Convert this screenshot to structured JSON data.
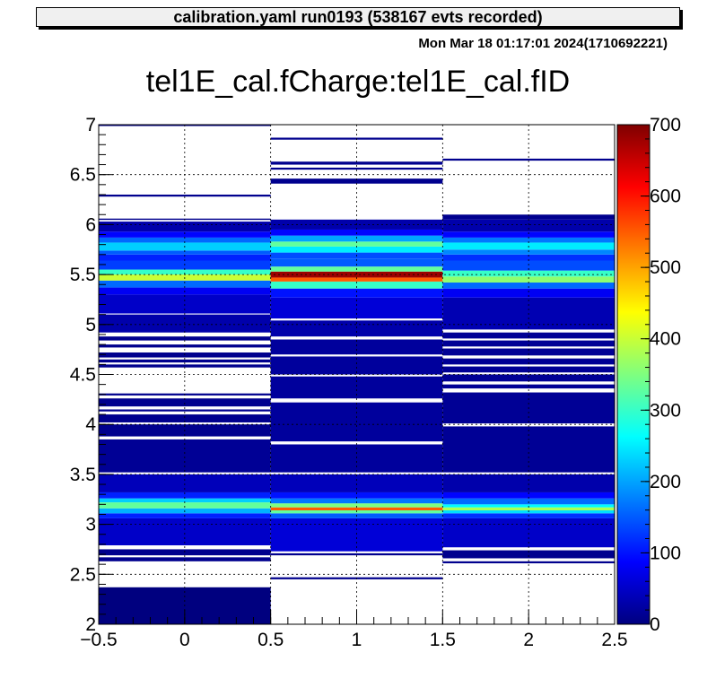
{
  "header": {
    "title": "calibration.yaml  run0193 (538167 evts recorded)"
  },
  "timestamp": "Mon Mar 18 01:17:01 2024(1710692221)",
  "chart_data": {
    "type": "heatmap",
    "title": "tel1E_cal.fCharge:tel1E_cal.fID",
    "xlabel": "",
    "ylabel": "",
    "xlim": [
      -0.5,
      2.5
    ],
    "ylim": [
      2,
      7
    ],
    "zlim": [
      0,
      700
    ],
    "x_ticks": [
      "−0.5",
      "0",
      "0.5",
      "1",
      "1.5",
      "2",
      "2.5"
    ],
    "x_tick_values": [
      -0.5,
      0,
      0.5,
      1,
      1.5,
      2,
      2.5
    ],
    "y_ticks": [
      "2",
      "2.5",
      "3",
      "3.5",
      "4",
      "4.5",
      "5",
      "5.5",
      "6",
      "6.5",
      "7"
    ],
    "y_tick_values": [
      2,
      2.5,
      3,
      3.5,
      4,
      4.5,
      5,
      5.5,
      6,
      6.5,
      7
    ],
    "z_ticks": [
      "0",
      "100",
      "200",
      "300",
      "400",
      "500",
      "600",
      "700"
    ],
    "z_tick_values": [
      0,
      100,
      200,
      300,
      400,
      500,
      600,
      700
    ],
    "grid": true,
    "palette": [
      "#00007f",
      "#0000ff",
      "#007fff",
      "#00ffff",
      "#7fff7f",
      "#ffff00",
      "#ff7f00",
      "#ff0000",
      "#7f0000"
    ],
    "columns": [
      {
        "id": 0,
        "blocks": [
          [
            2.0,
            2.37,
            0
          ],
          [
            2.63,
            2.67,
            10
          ],
          [
            2.69,
            2.75,
            10
          ],
          [
            2.79,
            3.06,
            50
          ],
          [
            3.06,
            3.11,
            110
          ],
          [
            3.11,
            3.16,
            210
          ],
          [
            3.16,
            3.22,
            330
          ],
          [
            3.22,
            3.26,
            230
          ],
          [
            3.26,
            3.32,
            110
          ],
          [
            3.32,
            3.5,
            40
          ],
          [
            3.52,
            3.85,
            15
          ],
          [
            3.88,
            4.0,
            10
          ],
          [
            4.02,
            4.1,
            10
          ],
          [
            4.13,
            4.15,
            10
          ],
          [
            4.18,
            4.26,
            10
          ],
          [
            4.29,
            4.31,
            10
          ],
          [
            4.57,
            4.6,
            10
          ],
          [
            4.62,
            4.65,
            10
          ],
          [
            4.67,
            4.72,
            10
          ],
          [
            4.77,
            4.8,
            10
          ],
          [
            4.84,
            4.88,
            10
          ],
          [
            4.92,
            5.1,
            30
          ],
          [
            5.11,
            5.3,
            50
          ],
          [
            5.3,
            5.37,
            80
          ],
          [
            5.37,
            5.44,
            160
          ],
          [
            5.44,
            5.5,
            400
          ],
          [
            5.5,
            5.55,
            300
          ],
          [
            5.55,
            5.64,
            130
          ],
          [
            5.64,
            5.7,
            110
          ],
          [
            5.7,
            5.74,
            150
          ],
          [
            5.74,
            5.82,
            230
          ],
          [
            5.82,
            5.87,
            160
          ],
          [
            5.87,
            5.93,
            90
          ],
          [
            5.93,
            6.03,
            30
          ],
          [
            6.05,
            6.06,
            10
          ],
          [
            6.28,
            6.3,
            10
          ],
          [
            6.99,
            7.0,
            10
          ]
        ]
      },
      {
        "id": 1,
        "blocks": [
          [
            2.45,
            2.47,
            10
          ],
          [
            2.69,
            2.71,
            10
          ],
          [
            2.73,
            3.06,
            60
          ],
          [
            3.06,
            3.11,
            150
          ],
          [
            3.11,
            3.14,
            330
          ],
          [
            3.14,
            3.17,
            550
          ],
          [
            3.17,
            3.21,
            350
          ],
          [
            3.21,
            3.26,
            170
          ],
          [
            3.26,
            3.32,
            100
          ],
          [
            3.32,
            3.5,
            40
          ],
          [
            3.52,
            3.8,
            20
          ],
          [
            3.83,
            4.22,
            20
          ],
          [
            4.26,
            4.48,
            20
          ],
          [
            4.5,
            4.68,
            20
          ],
          [
            4.7,
            4.85,
            20
          ],
          [
            4.88,
            5.04,
            30
          ],
          [
            5.06,
            5.27,
            60
          ],
          [
            5.27,
            5.36,
            100
          ],
          [
            5.36,
            5.43,
            300
          ],
          [
            5.43,
            5.47,
            550
          ],
          [
            5.47,
            5.53,
            680
          ],
          [
            5.53,
            5.58,
            330
          ],
          [
            5.58,
            5.66,
            150
          ],
          [
            5.66,
            5.72,
            140
          ],
          [
            5.72,
            5.78,
            250
          ],
          [
            5.78,
            5.83,
            330
          ],
          [
            5.83,
            5.89,
            200
          ],
          [
            5.89,
            5.95,
            90
          ],
          [
            5.95,
            6.05,
            30
          ],
          [
            6.41,
            6.46,
            10
          ],
          [
            6.55,
            6.57,
            10
          ],
          [
            6.6,
            6.63,
            10
          ],
          [
            6.85,
            6.87,
            10
          ]
        ]
      },
      {
        "id": 2,
        "blocks": [
          [
            2.61,
            2.63,
            10
          ],
          [
            2.66,
            2.74,
            10
          ],
          [
            2.77,
            3.06,
            50
          ],
          [
            3.06,
            3.11,
            120
          ],
          [
            3.11,
            3.14,
            240
          ],
          [
            3.14,
            3.17,
            380
          ],
          [
            3.17,
            3.2,
            260
          ],
          [
            3.2,
            3.26,
            160
          ],
          [
            3.26,
            3.32,
            90
          ],
          [
            3.32,
            3.5,
            30
          ],
          [
            3.52,
            3.98,
            15
          ],
          [
            4.01,
            4.32,
            15
          ],
          [
            4.36,
            4.4,
            15
          ],
          [
            4.43,
            4.5,
            15
          ],
          [
            4.52,
            4.58,
            15
          ],
          [
            4.6,
            4.66,
            15
          ],
          [
            4.69,
            4.76,
            15
          ],
          [
            4.78,
            4.84,
            15
          ],
          [
            4.86,
            4.92,
            15
          ],
          [
            4.95,
            5.27,
            35
          ],
          [
            5.27,
            5.36,
            80
          ],
          [
            5.36,
            5.42,
            160
          ],
          [
            5.42,
            5.48,
            360
          ],
          [
            5.48,
            5.54,
            300
          ],
          [
            5.54,
            5.64,
            140
          ],
          [
            5.64,
            5.7,
            120
          ],
          [
            5.7,
            5.75,
            180
          ],
          [
            5.75,
            5.82,
            250
          ],
          [
            5.82,
            5.87,
            170
          ],
          [
            5.87,
            5.93,
            90
          ],
          [
            5.93,
            6.05,
            30
          ],
          [
            6.05,
            6.1,
            10
          ],
          [
            6.64,
            6.66,
            10
          ]
        ]
      }
    ]
  }
}
